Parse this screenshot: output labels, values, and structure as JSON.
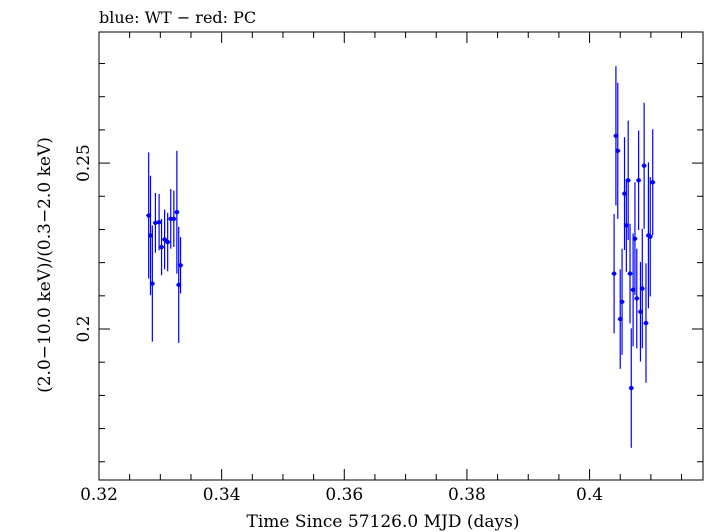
{
  "chart_data": {
    "type": "scatter",
    "title": "blue: WT − red: PC",
    "xlabel": "Time Since 57126.0 MJD (days)",
    "ylabel": "(2.0−10.0 keV)/(0.3−2.0 keV)",
    "xlim": [
      0.32,
      0.4185
    ],
    "ylim": [
      0.1545,
      0.2895
    ],
    "x_ticks": [
      0.32,
      0.34,
      0.36,
      0.38,
      0.4
    ],
    "x_tick_labels": [
      "0.32",
      "0.34",
      "0.36",
      "0.38",
      "0.4"
    ],
    "y_ticks": [
      0.2,
      0.25
    ],
    "y_tick_labels": [
      "0.2",
      "0.25"
    ],
    "grid": false,
    "legend": "none",
    "colors": {
      "WT": "#0000ff",
      "PC": "#ff0000"
    },
    "series": [
      {
        "name": "WT",
        "points": [
          {
            "x": 0.3281,
            "y": 0.2342,
            "yerr": 0.019
          },
          {
            "x": 0.3284,
            "y": 0.2282,
            "yerr": 0.018
          },
          {
            "x": 0.3287,
            "y": 0.2137,
            "yerr": 0.0175
          },
          {
            "x": 0.3292,
            "y": 0.232,
            "yerr": 0.009
          },
          {
            "x": 0.3298,
            "y": 0.2322,
            "yerr": 0.0085
          },
          {
            "x": 0.3302,
            "y": 0.2247,
            "yerr": 0.0085
          },
          {
            "x": 0.3307,
            "y": 0.227,
            "yerr": 0.009
          },
          {
            "x": 0.3312,
            "y": 0.2262,
            "yerr": 0.0088
          },
          {
            "x": 0.3317,
            "y": 0.2332,
            "yerr": 0.009
          },
          {
            "x": 0.3322,
            "y": 0.2332,
            "yerr": 0.0085
          },
          {
            "x": 0.3327,
            "y": 0.2352,
            "yerr": 0.0185
          },
          {
            "x": 0.333,
            "y": 0.2133,
            "yerr": 0.0175
          },
          {
            "x": 0.3333,
            "y": 0.2192,
            "yerr": 0.0085
          }
        ]
      },
      {
        "name": "PC",
        "points": []
      }
    ],
    "series_extra": [
      {
        "points": [
          {
            "x": 0.404,
            "y": 0.2167,
            "yerr": 0.018
          },
          {
            "x": 0.4043,
            "y": 0.2582,
            "yerr": 0.021
          },
          {
            "x": 0.4046,
            "y": 0.2537,
            "yerr": 0.0205
          },
          {
            "x": 0.405,
            "y": 0.203,
            "yerr": 0.015
          },
          {
            "x": 0.4053,
            "y": 0.2082,
            "yerr": 0.016
          },
          {
            "x": 0.4057,
            "y": 0.2408,
            "yerr": 0.017
          },
          {
            "x": 0.406,
            "y": 0.2312,
            "yerr": 0.014
          },
          {
            "x": 0.4063,
            "y": 0.2448,
            "yerr": 0.018
          },
          {
            "x": 0.4066,
            "y": 0.2167,
            "yerr": 0.015
          },
          {
            "x": 0.4068,
            "y": 0.1822,
            "yerr": 0.018
          },
          {
            "x": 0.4071,
            "y": 0.2118,
            "yerr": 0.017
          },
          {
            "x": 0.4074,
            "y": 0.2272,
            "yerr": 0.017
          },
          {
            "x": 0.4077,
            "y": 0.2092,
            "yerr": 0.015
          },
          {
            "x": 0.408,
            "y": 0.2448,
            "yerr": 0.015
          },
          {
            "x": 0.4083,
            "y": 0.2052,
            "yerr": 0.015
          },
          {
            "x": 0.4086,
            "y": 0.2122,
            "yerr": 0.018
          },
          {
            "x": 0.4089,
            "y": 0.2492,
            "yerr": 0.019
          },
          {
            "x": 0.4092,
            "y": 0.2018,
            "yerr": 0.018
          },
          {
            "x": 0.4096,
            "y": 0.2282,
            "yerr": 0.022
          },
          {
            "x": 0.4099,
            "y": 0.2278,
            "yerr": 0.018
          },
          {
            "x": 0.4103,
            "y": 0.2442,
            "yerr": 0.016
          }
        ]
      }
    ]
  }
}
